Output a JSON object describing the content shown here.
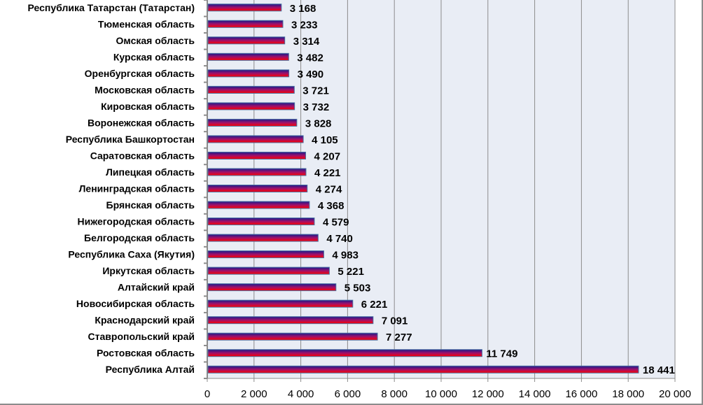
{
  "chart_data": {
    "type": "bar",
    "orientation": "horizontal",
    "categories": [
      "Республика Татарстан (Татарстан)",
      "Тюменская область",
      "Омская область",
      "Курская область",
      "Оренбургская область",
      "Московская область",
      "Кировская область",
      "Воронежская область",
      "Республика Башкортостан",
      "Саратовская область",
      "Липецкая область",
      "Ленинградская область",
      "Брянская область",
      "Нижегородская область",
      "Белгородская область",
      "Республика Саха (Якутия)",
      "Иркутская область",
      "Алтайский край",
      "Новосибирская область",
      "Краснодарский край",
      "Ставропольский край",
      "Ростовская область",
      "Республика Алтай"
    ],
    "values": [
      3168,
      3233,
      3314,
      3482,
      3490,
      3721,
      3732,
      3828,
      4105,
      4207,
      4221,
      4274,
      4368,
      4579,
      4740,
      4983,
      5221,
      5503,
      6221,
      7091,
      7277,
      11749,
      18441
    ],
    "value_labels": [
      "3 168",
      "3 233",
      "3 314",
      "3 482",
      "3 490",
      "3 721",
      "3 732",
      "3 828",
      "4 105",
      "4 207",
      "4 221",
      "4 274",
      "4 368",
      "4 579",
      "4 740",
      "4 983",
      "5 221",
      "5 503",
      "6 221",
      "7 091",
      "7 277",
      "11 749",
      "18 441"
    ],
    "xlim": [
      0,
      20000
    ],
    "xticks": [
      "0",
      "2 000",
      "4 000",
      "6 000",
      "8 000",
      "10 000",
      "12 000",
      "14 000",
      "16 000",
      "18 000",
      "20 000"
    ],
    "grid": true,
    "colors": {
      "bar_top": "#1a1a8c",
      "bar_bottom": "#ff0000",
      "plot_bg": "#e9edf5",
      "grid": "#8c8c8c"
    }
  }
}
